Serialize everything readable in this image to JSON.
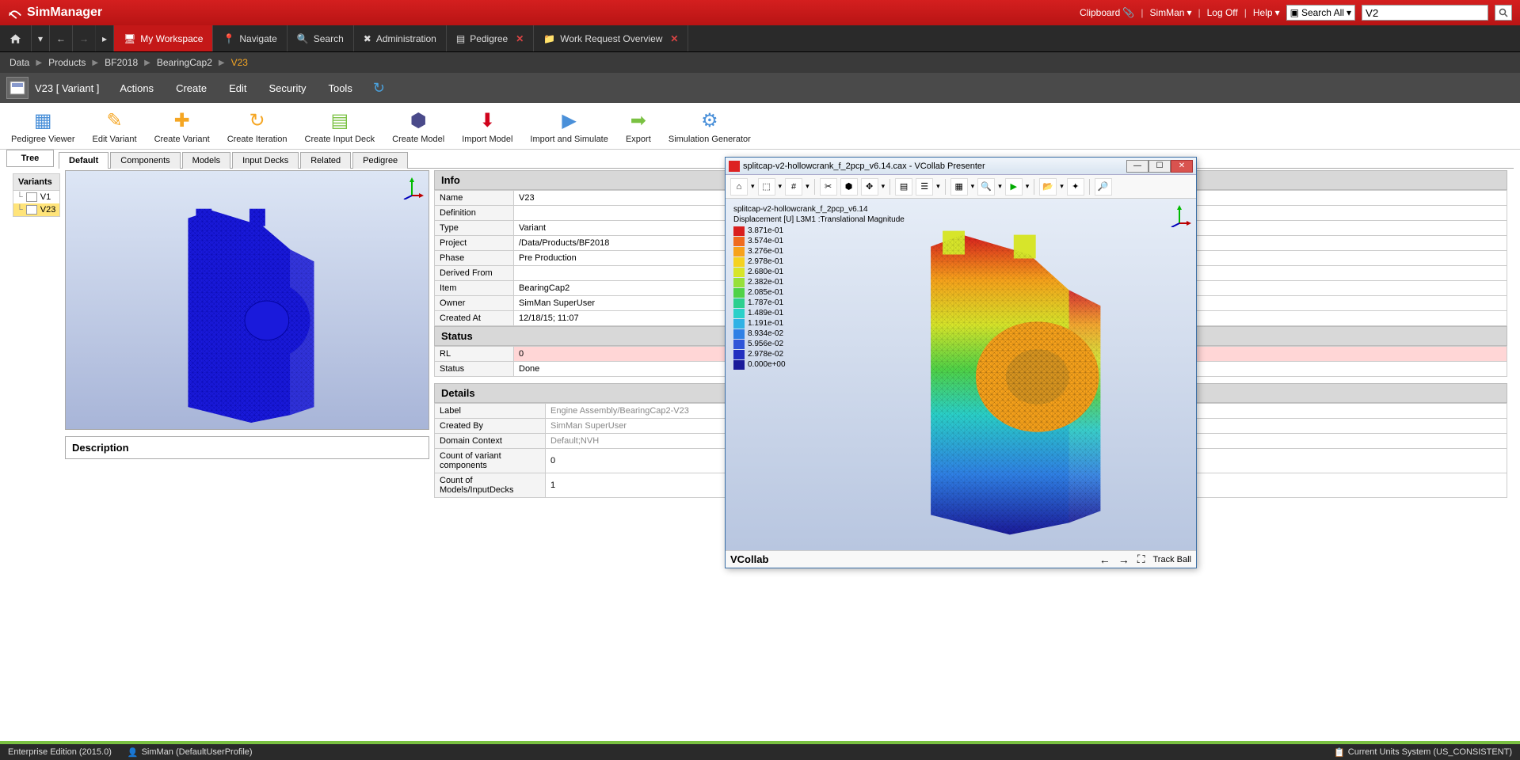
{
  "app": {
    "name": "SimManager"
  },
  "topbar": {
    "clipboard": "Clipboard",
    "user": "SimMan",
    "logoff": "Log Off",
    "help": "Help",
    "search_scope": "Search All",
    "search_value": "V2"
  },
  "nav": {
    "workspace": "My Workspace",
    "navigate": "Navigate",
    "search": "Search",
    "admin": "Administration",
    "pedigree": "Pedigree",
    "work_request": "Work Request Overview"
  },
  "breadcrumb": {
    "items": [
      "Data",
      "Products",
      "BF2018",
      "BearingCap2"
    ],
    "current": "V23"
  },
  "actionbar": {
    "title": "V23 [  Variant ]",
    "menus": [
      "Actions",
      "Create",
      "Edit",
      "Security",
      "Tools"
    ]
  },
  "ribbon": {
    "buttons": [
      "Pedigree Viewer",
      "Edit Variant",
      "Create Variant",
      "Create Iteration",
      "Create Input Deck",
      "Create Model",
      "Import Model",
      "Import and Simulate",
      "Export",
      "Simulation Generator"
    ]
  },
  "tabs": [
    "Default",
    "Components",
    "Models",
    "Input Decks",
    "Related",
    "Pedigree"
  ],
  "tree": {
    "tab": "Tree",
    "header": "Variants",
    "items": [
      "V1",
      "V23"
    ],
    "selected": 1
  },
  "description_label": "Description",
  "info": {
    "header": "Info",
    "rows": [
      {
        "k": "Name",
        "v": "V23"
      },
      {
        "k": "Definition",
        "v": ""
      },
      {
        "k": "Type",
        "v": "Variant"
      },
      {
        "k": "Project",
        "v": "/Data/Products/BF2018"
      },
      {
        "k": "Phase",
        "v": "Pre Production"
      },
      {
        "k": "Derived From",
        "v": ""
      },
      {
        "k": "Item",
        "v": "BearingCap2"
      },
      {
        "k": "Owner",
        "v": "SimMan SuperUser"
      },
      {
        "k": "Created At",
        "v": "12/18/15; 11:07"
      }
    ]
  },
  "status": {
    "header": "Status",
    "rows": [
      {
        "k": "RL",
        "v": "0",
        "hl": true
      },
      {
        "k": "Status",
        "v": "Done"
      }
    ]
  },
  "details": {
    "header": "Details",
    "rows": [
      {
        "k": "Label",
        "v": "Engine Assembly/BearingCap2-V23",
        "gray": true
      },
      {
        "k": "Created By",
        "v": "SimMan SuperUser",
        "gray": true
      },
      {
        "k": "Domain Context",
        "v": "Default;NVH",
        "gray": true
      },
      {
        "k": "Count of variant components",
        "v": "0"
      },
      {
        "k": "Count of Models/InputDecks",
        "v": "1"
      }
    ]
  },
  "vcollab": {
    "title": "splitcap-v2-hollowcrank_f_2pcp_v6.14.cax - VCollab Presenter",
    "overlay_line1": "splitcap-v2-hollowcrank_f_2pcp_v6.14",
    "overlay_line2": "Displacement [U] L3M1 :Translational Magnitude",
    "legend": [
      {
        "c": "#d91e1e",
        "v": "3.871e-01"
      },
      {
        "c": "#ef6b1f",
        "v": "3.574e-01"
      },
      {
        "c": "#f7a21b",
        "v": "3.276e-01"
      },
      {
        "c": "#f5d220",
        "v": "2.978e-01"
      },
      {
        "c": "#d7e52a",
        "v": "2.680e-01"
      },
      {
        "c": "#97e03a",
        "v": "2.382e-01"
      },
      {
        "c": "#4fd247",
        "v": "2.085e-01"
      },
      {
        "c": "#2ccf8f",
        "v": "1.787e-01"
      },
      {
        "c": "#2ad0c9",
        "v": "1.489e-01"
      },
      {
        "c": "#30b2e5",
        "v": "1.191e-01"
      },
      {
        "c": "#2f80e5",
        "v": "8.934e-02"
      },
      {
        "c": "#2f55d8",
        "v": "5.956e-02"
      },
      {
        "c": "#2330c0",
        "v": "2.978e-02"
      },
      {
        "c": "#1a1a9a",
        "v": "0.000e+00"
      }
    ],
    "brand": "VCollab",
    "trackball": "Track Ball"
  },
  "statusbar": {
    "edition": "Enterprise Edition (2015.0)",
    "user": "SimMan (DefaultUserProfile)",
    "units": "Current Units System (US_CONSISTENT)"
  }
}
